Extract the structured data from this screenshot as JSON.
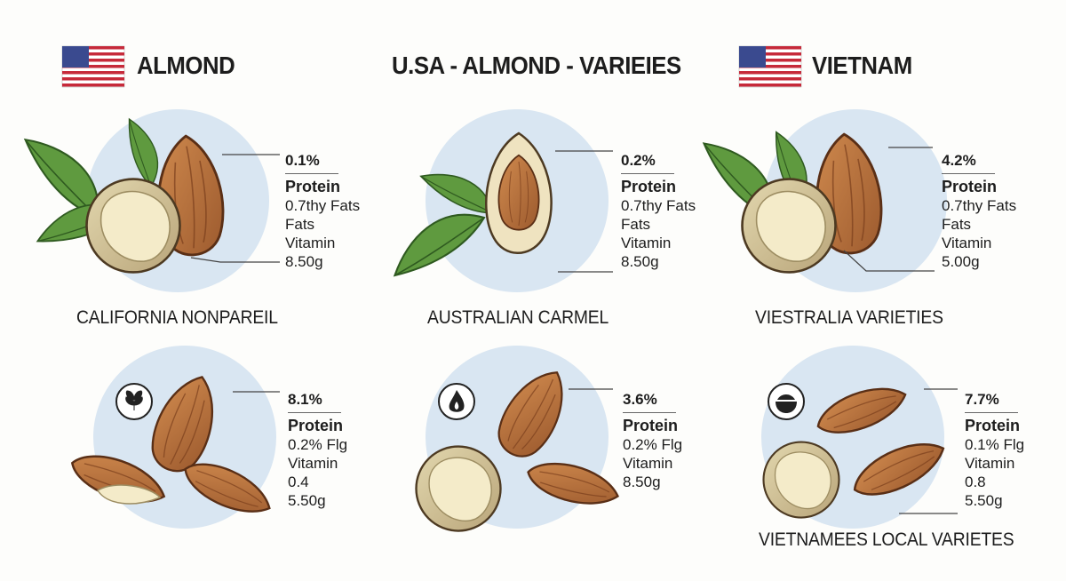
{
  "headers": {
    "left": "ALMOND",
    "center": "U.SA - ALMOND - VARIEIES",
    "right": "VIETNAM"
  },
  "colors": {
    "circle": "#d9e6f2",
    "shell": "#b8733f",
    "leaf": "#5f9a3f",
    "kernel": "#f3e9c6",
    "flag_red": "#c62a3a",
    "flag_blue": "#3a4a8f"
  },
  "cards": [
    {
      "variety": "CALIFORNIA NONPAREIL",
      "pct": "0.1%",
      "protein": "Protein",
      "l1": "0.7thy Fats",
      "l2": "Fats",
      "l3": "Vitamin",
      "l4": "8.50g"
    },
    {
      "variety": "AUSTRALIAN CARMEL",
      "pct": "0.2%",
      "protein": "Protein",
      "l1": "0.7thy Fats",
      "l2": "Fats",
      "l3": "Vitamin",
      "l4": "8.50g"
    },
    {
      "variety": "VIESTRALIA VARIETIES",
      "pct": "4.2%",
      "protein": "Protein",
      "l1": "0.7thy Fats",
      "l2": "Fats",
      "l3": "Vitamin",
      "l4": "5.00g"
    },
    {
      "icon": "plant-icon",
      "pct": "8.1%",
      "protein": "Protein",
      "l1": "0.2% Flg",
      "l2": "Vitamin",
      "l3": "0.4",
      "l4": "5.50g"
    },
    {
      "icon": "flame-icon",
      "pct": "3.6%",
      "protein": "Protein",
      "l1": "0.2% Flg",
      "l2": "Vitamin",
      "l3": "8.50g",
      "l4": ""
    },
    {
      "icon": "bowl-icon",
      "variety": "VIETNAMEES LOCAL VARIETES",
      "pct": "7.7%",
      "protein": "Protein",
      "l1": "0.1% Flg",
      "l2": "Vitamin",
      "l3": "0.8",
      "l4": "5.50g"
    }
  ]
}
